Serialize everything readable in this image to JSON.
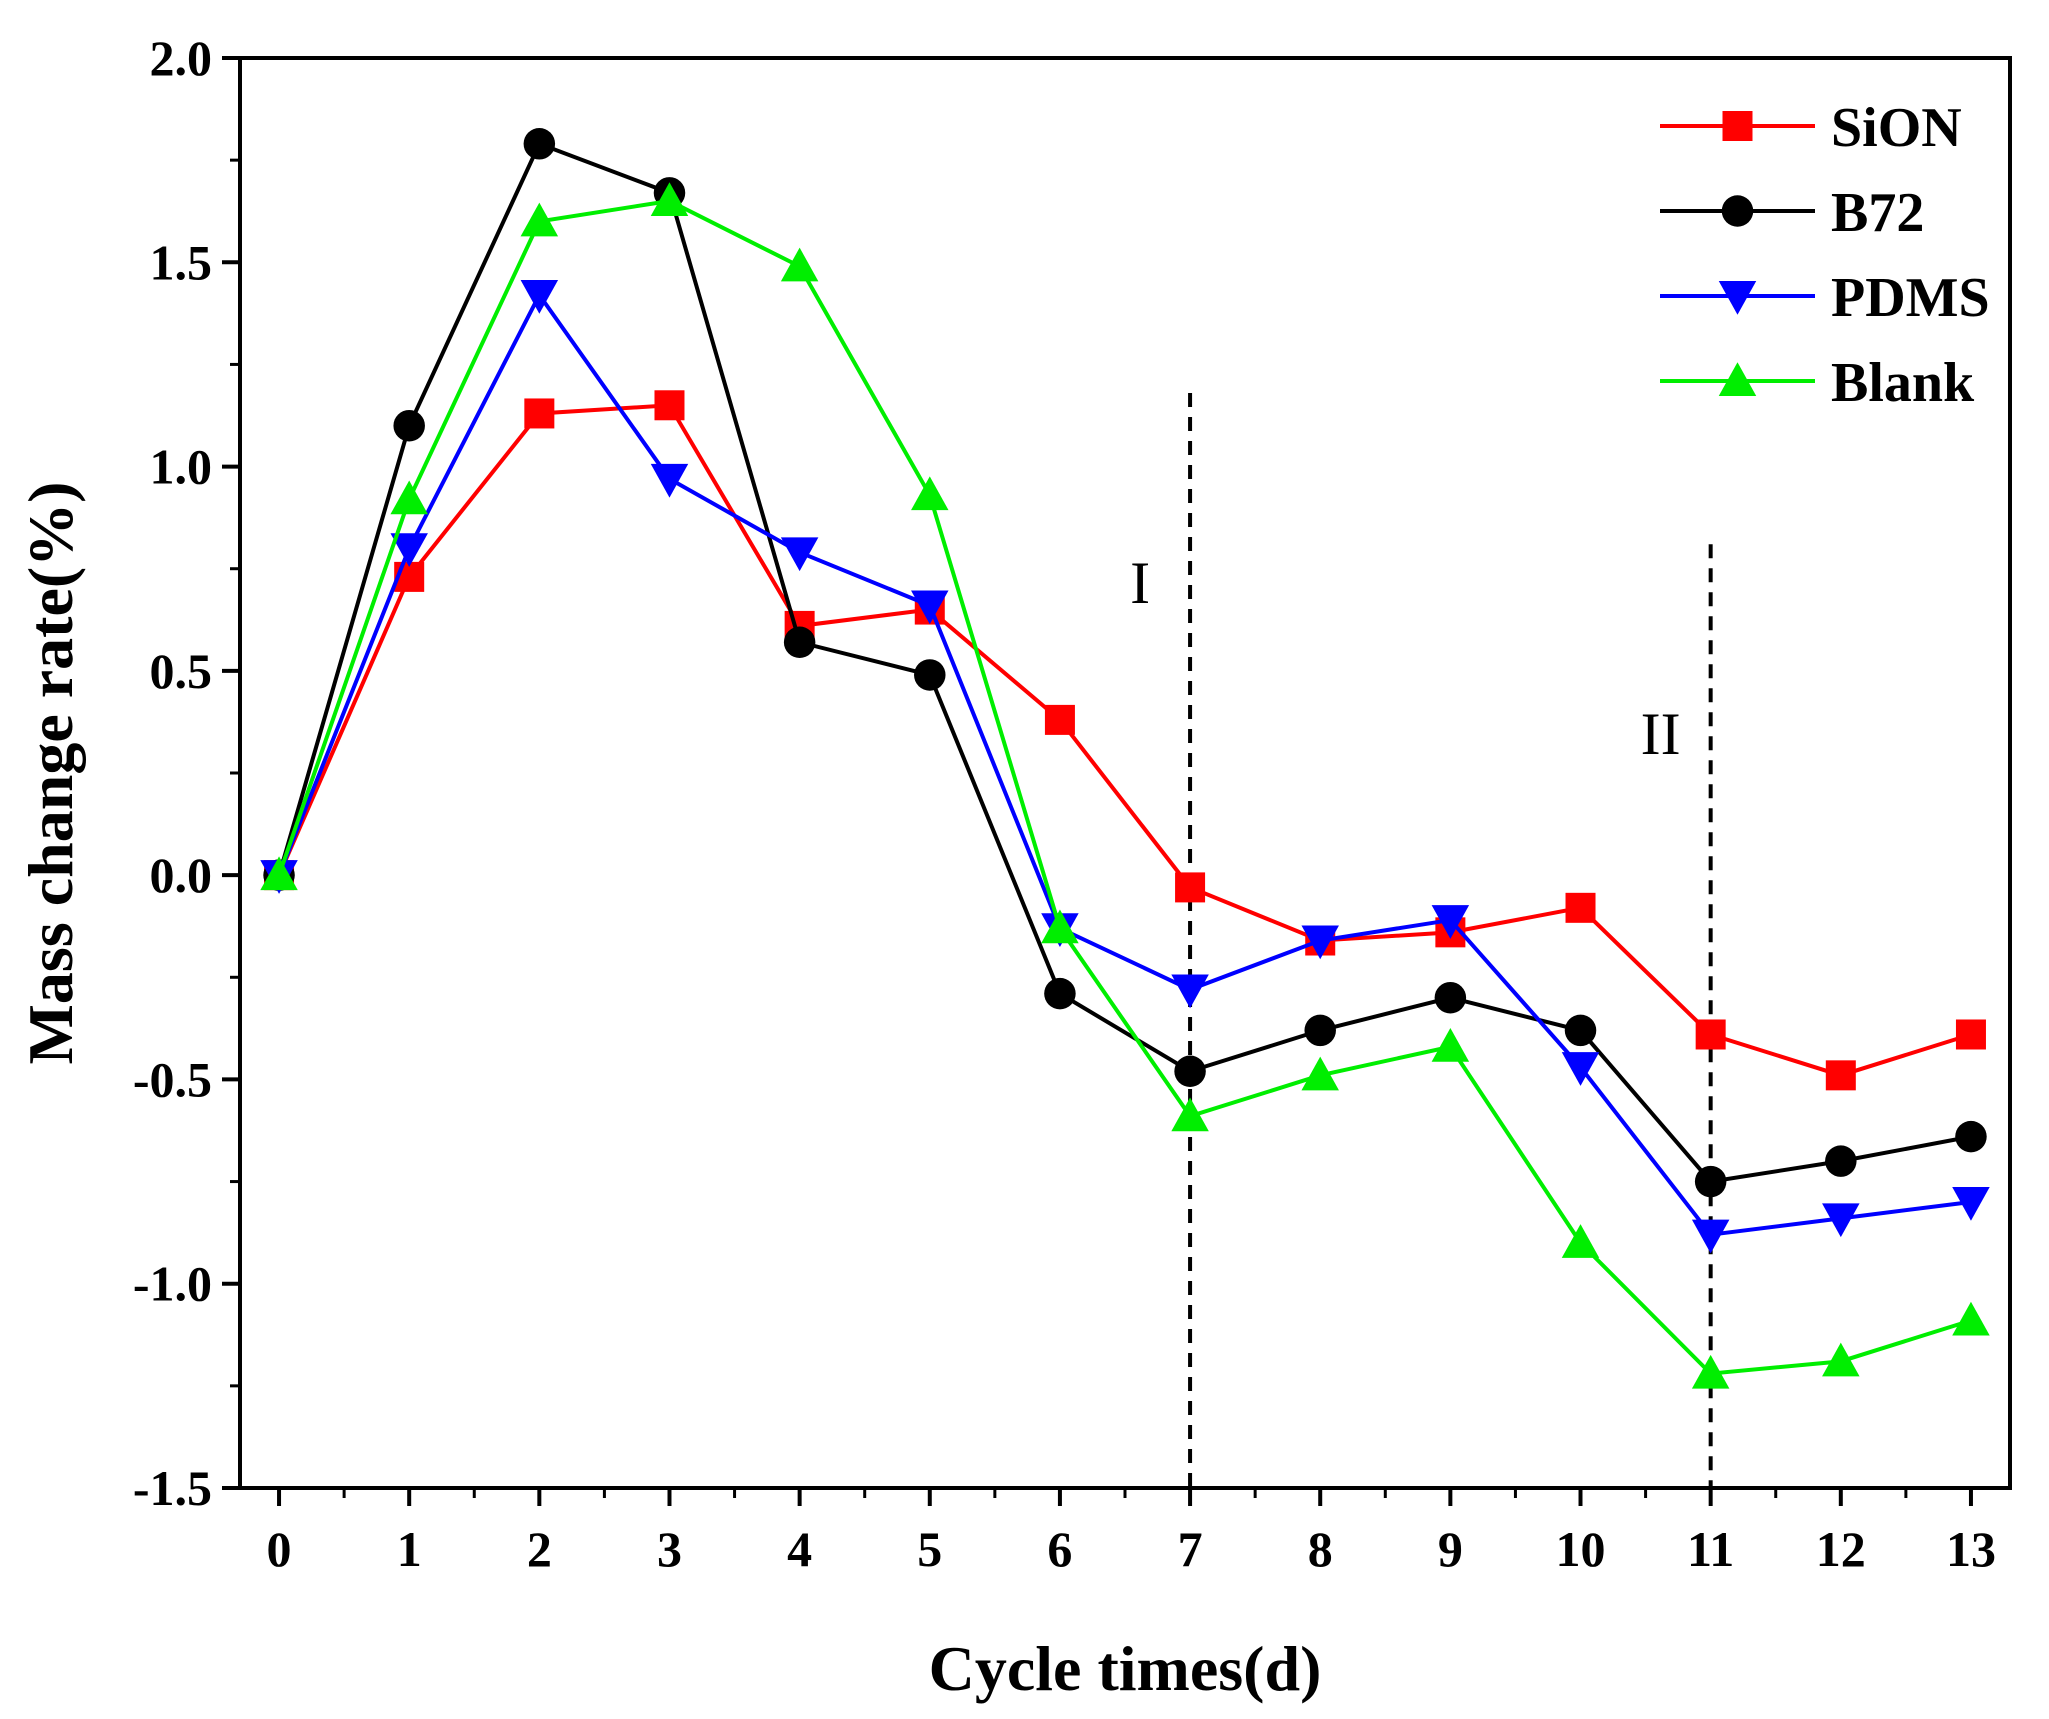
{
  "chart_data": {
    "type": "line",
    "title": "",
    "xlabel": "Cycle times(d)",
    "ylabel": "Mass change rate(%)",
    "x": [
      0,
      1,
      2,
      3,
      4,
      5,
      6,
      7,
      8,
      9,
      10,
      11,
      12,
      13
    ],
    "xlim": [
      -0.3,
      13.3
    ],
    "ylim": [
      -1.5,
      2.0
    ],
    "xticks": [
      "0",
      "1",
      "2",
      "3",
      "4",
      "5",
      "6",
      "7",
      "8",
      "9",
      "10",
      "11",
      "12",
      "13"
    ],
    "yticks": [
      "-1.5",
      "-1.0",
      "-0.5",
      "0.0",
      "0.5",
      "1.0",
      "1.5",
      "2.0"
    ],
    "grid": false,
    "legend_position": "top-right",
    "series": [
      {
        "name": "SiON",
        "color": "#ff0000",
        "marker": "square",
        "values": [
          0.0,
          0.73,
          1.13,
          1.15,
          0.61,
          0.65,
          0.38,
          -0.03,
          -0.16,
          -0.14,
          -0.08,
          -0.39,
          -0.49,
          -0.39
        ]
      },
      {
        "name": "B72",
        "color": "#000000",
        "marker": "circle",
        "values": [
          0.0,
          1.1,
          1.79,
          1.67,
          0.57,
          0.49,
          -0.29,
          -0.48,
          -0.38,
          -0.3,
          -0.38,
          -0.75,
          -0.7,
          -0.64
        ]
      },
      {
        "name": "PDMS",
        "color": "#0000ff",
        "marker": "triangle-down",
        "values": [
          0.0,
          0.8,
          1.42,
          0.97,
          0.79,
          0.66,
          -0.13,
          -0.28,
          -0.16,
          -0.11,
          -0.47,
          -0.88,
          -0.84,
          -0.8
        ]
      },
      {
        "name": "Blank",
        "color": "#00ee00",
        "marker": "triangle-up",
        "values": [
          0.0,
          0.92,
          1.6,
          1.65,
          1.49,
          0.93,
          -0.13,
          -0.59,
          -0.49,
          -0.42,
          -0.9,
          -1.22,
          -1.19,
          -1.09
        ]
      }
    ],
    "annotations": [
      {
        "label": "I",
        "x": 7,
        "y_top": 1.18
      },
      {
        "label": "II",
        "x": 11,
        "y_top": 0.81
      }
    ]
  }
}
